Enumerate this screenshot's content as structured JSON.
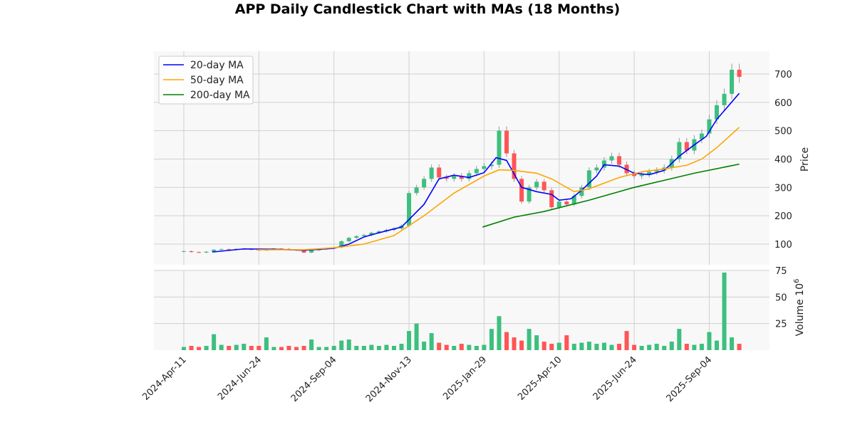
{
  "chart_data": {
    "type": "candlestick",
    "title": "APP Daily Candlestick Chart with MAs (18 Months)",
    "ylabel_price": "Price",
    "ylabel_volume": "Volume",
    "volume_exponent": "10",
    "volume_exponent_power": "6",
    "price_ticks": [
      100,
      200,
      300,
      400,
      500,
      600,
      700
    ],
    "volume_ticks": [
      25,
      50,
      75
    ],
    "x_ticks": [
      {
        "t": 0,
        "label": "2024-Apr-11"
      },
      {
        "t": 50,
        "label": "2024-Jun-24"
      },
      {
        "t": 100,
        "label": "2024-Sep-04"
      },
      {
        "t": 150,
        "label": "2024-Nov-13"
      },
      {
        "t": 200,
        "label": "2025-Jan-29"
      },
      {
        "t": 250,
        "label": "2025-Apr-10"
      },
      {
        "t": 300,
        "label": "2025-Jun-24"
      },
      {
        "t": 350,
        "label": "2025-Sep-04"
      }
    ],
    "candle_step_days": 5,
    "closes": [
      75,
      72,
      70,
      73,
      80,
      82,
      81,
      83,
      83,
      80,
      78,
      80,
      84,
      83,
      80,
      78,
      70,
      78,
      82,
      85,
      88,
      110,
      122,
      128,
      132,
      140,
      145,
      150,
      155,
      165,
      280,
      300,
      330,
      370,
      335,
      330,
      340,
      330,
      350,
      365,
      375,
      380,
      500,
      420,
      330,
      250,
      300,
      320,
      290,
      230,
      250,
      240,
      270,
      300,
      360,
      370,
      395,
      410,
      380,
      350,
      340,
      345,
      355,
      360,
      370,
      400,
      460,
      430,
      470,
      490,
      540,
      590,
      630,
      715,
      690
    ],
    "volumes": [
      3,
      4,
      3,
      4,
      15,
      5,
      4,
      5,
      6,
      4,
      4,
      12,
      3,
      3,
      4,
      3,
      4,
      10,
      3,
      3,
      4,
      9,
      10,
      4,
      4,
      5,
      4,
      5,
      4,
      6,
      18,
      25,
      8,
      16,
      7,
      5,
      4,
      6,
      5,
      4,
      5,
      20,
      32,
      17,
      12,
      9,
      20,
      14,
      8,
      6,
      7,
      14,
      6,
      7,
      8,
      6,
      7,
      5,
      6,
      18,
      5,
      4,
      5,
      6,
      4,
      8,
      20,
      6,
      5,
      6,
      17,
      9,
      73,
      12,
      6
    ],
    "series": [
      {
        "name": "20-day MA",
        "color": "#0000ff",
        "points": [
          [
            19,
            72
          ],
          [
            40,
            83
          ],
          [
            60,
            82
          ],
          [
            80,
            78
          ],
          [
            100,
            85
          ],
          [
            110,
            100
          ],
          [
            120,
            125
          ],
          [
            130,
            140
          ],
          [
            145,
            160
          ],
          [
            160,
            240
          ],
          [
            170,
            330
          ],
          [
            180,
            343
          ],
          [
            190,
            335
          ],
          [
            200,
            352
          ],
          [
            205,
            385
          ],
          [
            208,
            405
          ],
          [
            215,
            395
          ],
          [
            225,
            300
          ],
          [
            235,
            285
          ],
          [
            245,
            275
          ],
          [
            250,
            255
          ],
          [
            258,
            260
          ],
          [
            265,
            290
          ],
          [
            275,
            340
          ],
          [
            280,
            380
          ],
          [
            290,
            375
          ],
          [
            300,
            350
          ],
          [
            310,
            345
          ],
          [
            320,
            360
          ],
          [
            330,
            410
          ],
          [
            340,
            450
          ],
          [
            348,
            480
          ],
          [
            355,
            540
          ],
          [
            370,
            632
          ]
        ]
      },
      {
        "name": "50-day MA",
        "color": "#ffa500",
        "points": [
          [
            49,
            80
          ],
          [
            80,
            80
          ],
          [
            100,
            87
          ],
          [
            120,
            100
          ],
          [
            140,
            130
          ],
          [
            160,
            200
          ],
          [
            180,
            280
          ],
          [
            200,
            340
          ],
          [
            210,
            362
          ],
          [
            220,
            360
          ],
          [
            235,
            350
          ],
          [
            245,
            330
          ],
          [
            260,
            285
          ],
          [
            270,
            295
          ],
          [
            290,
            335
          ],
          [
            305,
            355
          ],
          [
            320,
            365
          ],
          [
            335,
            378
          ],
          [
            345,
            400
          ],
          [
            355,
            440
          ],
          [
            370,
            512
          ]
        ]
      },
      {
        "name": "200-day MA",
        "color": "#008000",
        "points": [
          [
            199,
            160
          ],
          [
            220,
            195
          ],
          [
            240,
            215
          ],
          [
            255,
            235
          ],
          [
            270,
            255
          ],
          [
            300,
            300
          ],
          [
            320,
            325
          ],
          [
            340,
            350
          ],
          [
            370,
            382
          ]
        ]
      }
    ],
    "colors": {
      "up": "#3dbf7f",
      "down": "#ff5555",
      "grid": "#d0d0d0",
      "bg": "#f8f8f8"
    }
  }
}
